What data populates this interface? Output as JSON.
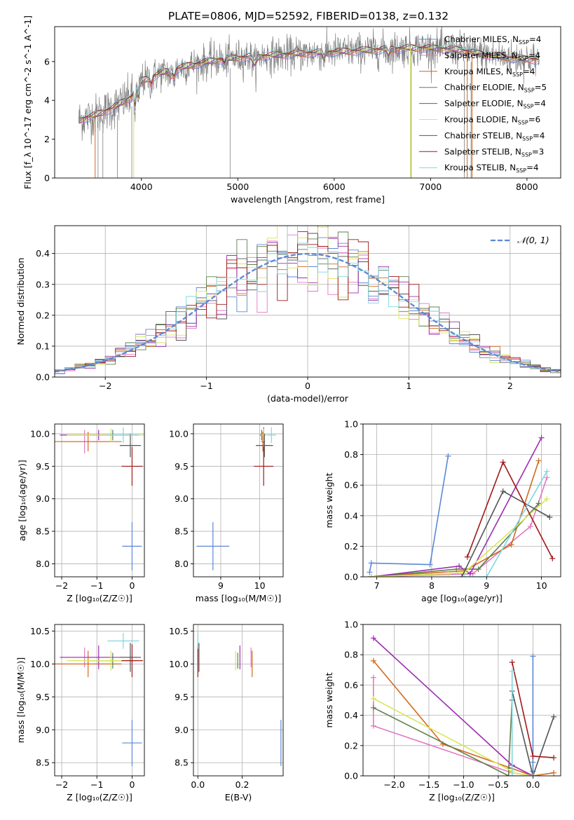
{
  "figure": {
    "title": "PLATE=0806, MJD=52592, FIBERID=0138, z=0.132"
  },
  "colors": {
    "Chabrier MILES": "#5b88d4",
    "Salpeter MILES": "#e377c2",
    "Kroupa MILES": "#d2691e",
    "Chabrier ELODIE": "#5f7f4f",
    "Salpeter ELODIE": "#9b30b0",
    "Kroupa ELODIE": "#d8e65a",
    "Chabrier STELIB": "#555555",
    "Salpeter STELIB": "#a01818",
    "Kroupa STELIB": "#7fd6e0",
    "data": "#808080"
  },
  "chart_data": [
    {
      "id": "spectrum",
      "type": "line",
      "xlabel": "wavelength [Angstrom, rest frame]",
      "ylabel": "Flux [f_λ 10^-17 erg cm^-2 s^-1 A^-1]",
      "xlim": [
        3100,
        8350
      ],
      "ylim": [
        0,
        7.8
      ],
      "xticks": [
        4000,
        5000,
        6000,
        7000,
        8000
      ],
      "yticks": [
        0,
        2,
        4,
        6
      ],
      "grid": false,
      "legend_position": "right",
      "legend": [
        {
          "name": "Chabrier MILES",
          "nssp": "4"
        },
        {
          "name": "Salpeter MILES",
          "nssp": "4"
        },
        {
          "name": "Kroupa MILES",
          "nssp": "4"
        },
        {
          "name": "Chabrier ELODIE",
          "nssp": "5"
        },
        {
          "name": "Salpeter ELODIE",
          "nssp": "4"
        },
        {
          "name": "Kroupa ELODIE",
          "nssp": "6"
        },
        {
          "name": "Chabrier STELIB",
          "nssp": "4"
        },
        {
          "name": "Salpeter STELIB",
          "nssp": "3"
        },
        {
          "name": "Kroupa STELIB",
          "nssp": "4"
        }
      ],
      "continuum_x": [
        3350,
        3500,
        3700,
        3900,
        4000,
        4200,
        4500,
        4800,
        5000,
        5300,
        5600,
        6000,
        6400,
        6800,
        7000,
        7300,
        7500,
        7800,
        8100
      ],
      "continuum_y": [
        3.0,
        3.2,
        3.6,
        4.2,
        5.0,
        5.4,
        5.8,
        6.1,
        6.2,
        6.3,
        6.4,
        6.5,
        6.6,
        6.7,
        6.7,
        6.6,
        6.4,
        6.2,
        6.1
      ]
    },
    {
      "id": "residuals",
      "type": "bar",
      "xlabel": "(data-model)/error",
      "ylabel": "Normed distribution",
      "xlim": [
        -2.5,
        2.5
      ],
      "ylim": [
        0,
        0.49
      ],
      "xticks": [
        -2,
        -1,
        0,
        1,
        2
      ],
      "yticks": [
        0.0,
        0.1,
        0.2,
        0.3,
        0.4
      ],
      "grid": true,
      "legend_position": "top-right",
      "legend": [
        "𝒩(0, 1)"
      ]
    },
    {
      "id": "age_vs_Z",
      "type": "scatter",
      "xlabel": "Z [log₁₀(Z/Z☉)]",
      "ylabel": "age  [log₁₀(age/yr)]",
      "xlim": [
        -2.2,
        0.35
      ],
      "ylim": [
        7.8,
        10.15
      ],
      "xticks": [
        -2,
        -1,
        0
      ],
      "yticks": [
        8.0,
        8.5,
        9.0,
        9.5,
        10.0
      ],
      "grid": true,
      "points": [
        {
          "model": "Chabrier MILES",
          "x": 0.0,
          "y": 8.27,
          "xerr": 0.28,
          "yerr": 0.37
        },
        {
          "model": "Salpeter MILES",
          "x": -1.35,
          "y": 9.88,
          "xerr": 0.7,
          "yerr": 0.18
        },
        {
          "model": "Kroupa MILES",
          "x": -1.25,
          "y": 9.88,
          "xerr": 0.95,
          "yerr": 0.15
        },
        {
          "model": "Chabrier ELODIE",
          "x": -0.55,
          "y": 9.98,
          "xerr": 0.65,
          "yerr": 0.08
        },
        {
          "model": "Salpeter ELODIE",
          "x": -0.95,
          "y": 9.98,
          "xerr": 1.1,
          "yerr": 0.08
        },
        {
          "model": "Kroupa ELODIE",
          "x": -0.6,
          "y": 9.98,
          "xerr": 1.25,
          "yerr": 0.1
        },
        {
          "model": "Chabrier STELIB",
          "x": -0.05,
          "y": 9.82,
          "xerr": 0.3,
          "yerr": 0.18
        },
        {
          "model": "Salpeter STELIB",
          "x": 0.0,
          "y": 9.5,
          "xerr": 0.3,
          "yerr": 0.3
        },
        {
          "model": "Kroupa STELIB",
          "x": -0.25,
          "y": 9.98,
          "xerr": 0.45,
          "yerr": 0.12
        }
      ]
    },
    {
      "id": "age_vs_mass",
      "type": "scatter",
      "xlabel": "mass [log₁₀(M/M☉)]",
      "ylabel": "",
      "xlim": [
        8.3,
        10.6
      ],
      "ylim": [
        7.8,
        10.15
      ],
      "xticks": [
        9,
        10
      ],
      "yticks": [
        8.0,
        8.5,
        9.0,
        9.5,
        10.0
      ],
      "grid": true,
      "points": [
        {
          "model": "Chabrier MILES",
          "x": 8.8,
          "y": 8.27,
          "xerr": 0.42,
          "yerr": 0.37
        },
        {
          "model": "Salpeter MILES",
          "x": 10.1,
          "y": 9.88,
          "xerr": 0.04,
          "yerr": 0.18
        },
        {
          "model": "Kroupa MILES",
          "x": 10.08,
          "y": 9.88,
          "xerr": 0.04,
          "yerr": 0.15
        },
        {
          "model": "Chabrier ELODIE",
          "x": 10.05,
          "y": 9.98,
          "xerr": 0.05,
          "yerr": 0.08
        },
        {
          "model": "Salpeter ELODIE",
          "x": 10.1,
          "y": 9.98,
          "xerr": 0.06,
          "yerr": 0.12
        },
        {
          "model": "Kroupa ELODIE",
          "x": 10.1,
          "y": 9.98,
          "xerr": 0.06,
          "yerr": 0.1
        },
        {
          "model": "Chabrier STELIB",
          "x": 10.12,
          "y": 9.82,
          "xerr": 0.22,
          "yerr": 0.18
        },
        {
          "model": "Salpeter STELIB",
          "x": 10.1,
          "y": 9.5,
          "xerr": 0.25,
          "yerr": 0.3
        },
        {
          "model": "Kroupa STELIB",
          "x": 10.3,
          "y": 9.98,
          "xerr": 0.12,
          "yerr": 0.12
        }
      ]
    },
    {
      "id": "weight_vs_age",
      "type": "line",
      "xlabel": "age  [log₁₀(age/yr)]",
      "ylabel": "mass weight",
      "xlim": [
        6.75,
        10.35
      ],
      "ylim": [
        0,
        1.0
      ],
      "xticks": [
        7,
        8,
        9,
        10
      ],
      "yticks": [
        0.0,
        0.2,
        0.4,
        0.6,
        0.8,
        1.0
      ],
      "grid": true,
      "series": [
        {
          "name": "Chabrier MILES",
          "x": [
            6.87,
            6.9,
            7.97,
            8.3
          ],
          "y": [
            0.03,
            0.09,
            0.08,
            0.79
          ]
        },
        {
          "name": "Salpeter MILES",
          "x": [
            6.9,
            8.75,
            9.8,
            10.1
          ],
          "y": [
            0.0,
            0.02,
            0.33,
            0.65
          ]
        },
        {
          "name": "Kroupa MILES",
          "x": [
            6.9,
            8.6,
            9.45,
            9.95
          ],
          "y": [
            0.0,
            0.04,
            0.21,
            0.76
          ]
        },
        {
          "name": "Chabrier ELODIE",
          "x": [
            6.9,
            8.45,
            8.85,
            9.95
          ],
          "y": [
            0.0,
            0.05,
            0.05,
            0.48
          ]
        },
        {
          "name": "Salpeter ELODIE",
          "x": [
            6.9,
            8.5,
            8.7,
            10.0
          ],
          "y": [
            0.0,
            0.07,
            0.02,
            0.91
          ]
        },
        {
          "name": "Kroupa ELODIE",
          "x": [
            6.9,
            8.3,
            8.6,
            10.1
          ],
          "y": [
            0.0,
            0.02,
            0.03,
            0.51
          ]
        },
        {
          "name": "Chabrier STELIB",
          "x": [
            8.55,
            9.3,
            10.15
          ],
          "y": [
            0.0,
            0.56,
            0.39
          ]
        },
        {
          "name": "Salpeter STELIB",
          "x": [
            8.65,
            9.3,
            10.2
          ],
          "y": [
            0.13,
            0.75,
            0.12
          ]
        },
        {
          "name": "Kroupa STELIB",
          "x": [
            8.6,
            9.0,
            10.1
          ],
          "y": [
            0.0,
            0.0,
            0.69
          ]
        }
      ]
    },
    {
      "id": "mass_vs_Z",
      "type": "scatter",
      "xlabel": "Z [log₁₀(Z/Z☉)]",
      "ylabel": "mass [log₁₀(M/M☉)]",
      "xlim": [
        -2.2,
        0.35
      ],
      "ylim": [
        8.3,
        10.6
      ],
      "xticks": [
        -2,
        -1,
        0
      ],
      "yticks": [
        8.5,
        9.0,
        9.5,
        10.0,
        10.5
      ],
      "grid": true,
      "points": [
        {
          "model": "Chabrier MILES",
          "x": 0.0,
          "y": 8.8,
          "xerr": 0.28,
          "yerr": 0.35
        },
        {
          "model": "Salpeter MILES",
          "x": -1.35,
          "y": 10.1,
          "xerr": 0.7,
          "yerr": 0.15
        },
        {
          "model": "Kroupa MILES",
          "x": -1.25,
          "y": 10.0,
          "xerr": 0.95,
          "yerr": 0.2
        },
        {
          "model": "Chabrier ELODIE",
          "x": -0.55,
          "y": 10.05,
          "xerr": 0.65,
          "yerr": 0.12
        },
        {
          "model": "Salpeter ELODIE",
          "x": -0.95,
          "y": 10.1,
          "xerr": 1.1,
          "yerr": 0.18
        },
        {
          "model": "Kroupa ELODIE",
          "x": -0.6,
          "y": 10.05,
          "xerr": 1.25,
          "yerr": 0.15
        },
        {
          "model": "Chabrier STELIB",
          "x": -0.05,
          "y": 10.1,
          "xerr": 0.3,
          "yerr": 0.22
        },
        {
          "model": "Salpeter STELIB",
          "x": 0.0,
          "y": 10.05,
          "xerr": 0.3,
          "yerr": 0.25
        },
        {
          "model": "Kroupa STELIB",
          "x": -0.25,
          "y": 10.35,
          "xerr": 0.45,
          "yerr": 0.12
        }
      ]
    },
    {
      "id": "mass_vs_ebv",
      "type": "scatter",
      "xlabel": "E(B-V)",
      "ylabel": "",
      "xlim": [
        -0.02,
        0.385
      ],
      "ylim": [
        8.3,
        10.6
      ],
      "xticks": [
        0.0,
        0.2
      ],
      "yticks": [
        8.5,
        9.0,
        9.5,
        10.0,
        10.5
      ],
      "grid": true,
      "points": [
        {
          "model": "Chabrier MILES",
          "x": 0.375,
          "y": 8.8,
          "xerr": 0,
          "yerr": 0.35
        },
        {
          "model": "Salpeter MILES",
          "x": 0.24,
          "y": 10.1,
          "xerr": 0,
          "yerr": 0.15
        },
        {
          "model": "Kroupa MILES",
          "x": 0.245,
          "y": 10.0,
          "xerr": 0,
          "yerr": 0.2
        },
        {
          "model": "Chabrier ELODIE",
          "x": 0.18,
          "y": 10.05,
          "xerr": 0,
          "yerr": 0.12
        },
        {
          "model": "Salpeter ELODIE",
          "x": 0.19,
          "y": 10.1,
          "xerr": 0,
          "yerr": 0.18
        },
        {
          "model": "Kroupa ELODIE",
          "x": 0.17,
          "y": 10.05,
          "xerr": 0,
          "yerr": 0.15
        },
        {
          "model": "Chabrier STELIB",
          "x": 0.005,
          "y": 10.1,
          "xerr": 0,
          "yerr": 0.22
        },
        {
          "model": "Salpeter STELIB",
          "x": 0.0,
          "y": 10.05,
          "xerr": 0,
          "yerr": 0.25
        },
        {
          "model": "Kroupa STELIB",
          "x": 0.0,
          "y": 10.35,
          "xerr": 0,
          "yerr": 0.12
        }
      ]
    },
    {
      "id": "weight_vs_Z",
      "type": "line",
      "xlabel": "Z [log₁₀(Z/Z☉)]",
      "ylabel": "mass weight",
      "xlim": [
        -2.45,
        0.4
      ],
      "ylim": [
        0,
        1.0
      ],
      "xticks": [
        -2.0,
        -1.5,
        -1.0,
        -0.5,
        0.0
      ],
      "yticks": [
        0.0,
        0.2,
        0.4,
        0.6,
        0.8,
        1.0
      ],
      "grid": true,
      "series": [
        {
          "name": "Chabrier MILES",
          "x": [
            0.0,
            0.0,
            0.0
          ],
          "y": [
            0.79,
            0.09,
            0.03
          ]
        },
        {
          "name": "Salpeter MILES",
          "x": [
            -2.3,
            -2.3,
            -0.3,
            0.0
          ],
          "y": [
            0.65,
            0.33,
            0.02,
            0.0
          ]
        },
        {
          "name": "Kroupa MILES",
          "x": [
            -2.3,
            -1.3,
            0.0,
            0.3
          ],
          "y": [
            0.76,
            0.21,
            0.0,
            0.02
          ]
        },
        {
          "name": "Chabrier ELODIE",
          "x": [
            -2.3,
            -0.35,
            -0.35,
            -0.3
          ],
          "y": [
            0.45,
            0.0,
            0.05,
            0.5
          ]
        },
        {
          "name": "Salpeter ELODIE",
          "x": [
            -2.3,
            -0.3,
            0.0
          ],
          "y": [
            0.91,
            0.07,
            0.0
          ]
        },
        {
          "name": "Kroupa ELODIE",
          "x": [
            -2.3,
            -0.3,
            -0.3,
            0.0
          ],
          "y": [
            0.51,
            0.03,
            0.02,
            0.0
          ]
        },
        {
          "name": "Chabrier STELIB",
          "x": [
            -0.3,
            0.0,
            0.3
          ],
          "y": [
            0.56,
            0.0,
            0.39
          ]
        },
        {
          "name": "Salpeter STELIB",
          "x": [
            -0.3,
            0.0,
            0.3
          ],
          "y": [
            0.75,
            0.13,
            0.12
          ]
        },
        {
          "name": "Kroupa STELIB",
          "x": [
            -0.3,
            -0.3,
            0.0
          ],
          "y": [
            0.69,
            0.0,
            0.0
          ]
        }
      ]
    }
  ]
}
